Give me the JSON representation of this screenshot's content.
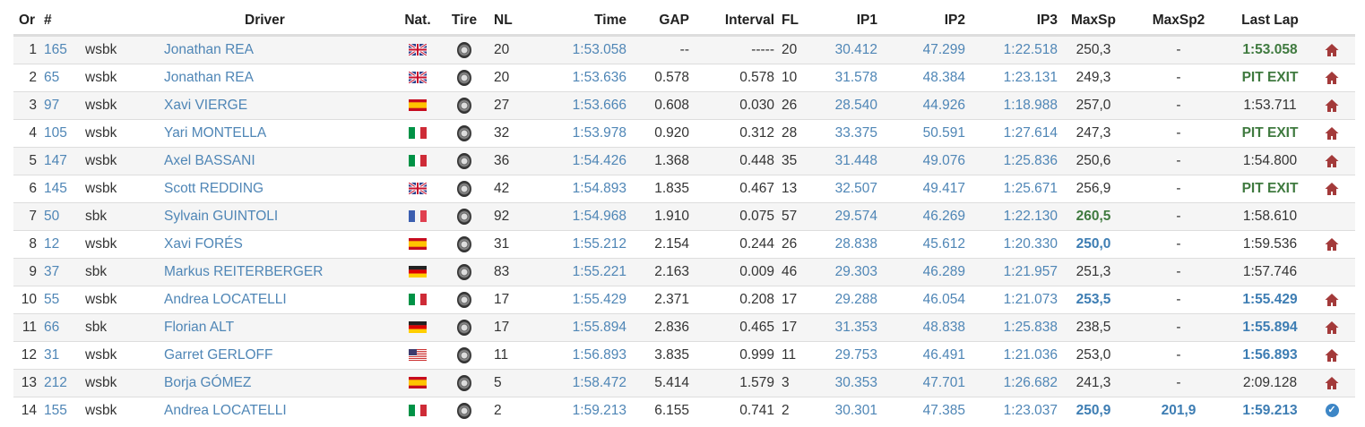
{
  "headers": {
    "or": "Or",
    "num": "#",
    "driver": "Driver",
    "nat": "Nat.",
    "tire": "Tire",
    "nl": "NL",
    "time": "Time",
    "gap": "GAP",
    "interval": "Interval",
    "fl": "FL",
    "ip1": "IP1",
    "ip2": "IP2",
    "ip3": "IP3",
    "maxsp": "MaxSp",
    "maxsp2": "MaxSp2",
    "lastlap": "Last Lap"
  },
  "colors": {
    "link": "#4f86b6",
    "green": "#3f7a3f",
    "blue": "#3d7db3",
    "home": "#a33a3a"
  },
  "rows": [
    {
      "or": "1",
      "num": "165",
      "cls": "wsbk",
      "driver": "Jonathan REA",
      "nat": "GB",
      "nl": "20",
      "time": "1:53.058",
      "gap": "--",
      "interval": "-----",
      "fl": "20",
      "ip1": "30.412",
      "ip2": "47.299",
      "ip3": "1:22.518",
      "maxsp": "250,3",
      "maxsp_style": "",
      "maxsp2": "-",
      "maxsp2_style": "",
      "lastlap": "1:53.058",
      "lastlap_style": "green",
      "icon": "home-icon"
    },
    {
      "or": "2",
      "num": "65",
      "cls": "wsbk",
      "driver": "Jonathan REA",
      "nat": "GB",
      "nl": "20",
      "time": "1:53.636",
      "gap": "0.578",
      "interval": "0.578",
      "fl": "10",
      "ip1": "31.578",
      "ip2": "48.384",
      "ip3": "1:23.131",
      "maxsp": "249,3",
      "maxsp_style": "",
      "maxsp2": "-",
      "maxsp2_style": "",
      "lastlap": "PIT EXIT",
      "lastlap_style": "pit",
      "icon": "home-icon"
    },
    {
      "or": "3",
      "num": "97",
      "cls": "wsbk",
      "driver": "Xavi VIERGE",
      "nat": "ES",
      "nl": "27",
      "time": "1:53.666",
      "gap": "0.608",
      "interval": "0.030",
      "fl": "26",
      "ip1": "28.540",
      "ip2": "44.926",
      "ip3": "1:18.988",
      "maxsp": "257,0",
      "maxsp_style": "",
      "maxsp2": "-",
      "maxsp2_style": "",
      "lastlap": "1:53.711",
      "lastlap_style": "",
      "icon": "home-icon"
    },
    {
      "or": "4",
      "num": "105",
      "cls": "wsbk",
      "driver": "Yari MONTELLA",
      "nat": "IT",
      "nl": "32",
      "time": "1:53.978",
      "gap": "0.920",
      "interval": "0.312",
      "fl": "28",
      "ip1": "33.375",
      "ip2": "50.591",
      "ip3": "1:27.614",
      "maxsp": "247,3",
      "maxsp_style": "",
      "maxsp2": "-",
      "maxsp2_style": "",
      "lastlap": "PIT EXIT",
      "lastlap_style": "pit",
      "icon": "home-icon"
    },
    {
      "or": "5",
      "num": "147",
      "cls": "wsbk",
      "driver": "Axel BASSANI",
      "nat": "IT",
      "nl": "36",
      "time": "1:54.426",
      "gap": "1.368",
      "interval": "0.448",
      "fl": "35",
      "ip1": "31.448",
      "ip2": "49.076",
      "ip3": "1:25.836",
      "maxsp": "250,6",
      "maxsp_style": "",
      "maxsp2": "-",
      "maxsp2_style": "",
      "lastlap": "1:54.800",
      "lastlap_style": "",
      "icon": "home-icon"
    },
    {
      "or": "6",
      "num": "145",
      "cls": "wsbk",
      "driver": "Scott REDDING",
      "nat": "GB",
      "nl": "42",
      "time": "1:54.893",
      "gap": "1.835",
      "interval": "0.467",
      "fl": "13",
      "ip1": "32.507",
      "ip2": "49.417",
      "ip3": "1:25.671",
      "maxsp": "256,9",
      "maxsp_style": "",
      "maxsp2": "-",
      "maxsp2_style": "",
      "lastlap": "PIT EXIT",
      "lastlap_style": "pit",
      "icon": "home-icon"
    },
    {
      "or": "7",
      "num": "50",
      "cls": "sbk",
      "driver": "Sylvain GUINTOLI",
      "nat": "FR",
      "nl": "92",
      "time": "1:54.968",
      "gap": "1.910",
      "interval": "0.075",
      "fl": "57",
      "ip1": "29.574",
      "ip2": "46.269",
      "ip3": "1:22.130",
      "maxsp": "260,5",
      "maxsp_style": "green",
      "maxsp2": "-",
      "maxsp2_style": "",
      "lastlap": "1:58.610",
      "lastlap_style": "",
      "icon": ""
    },
    {
      "or": "8",
      "num": "12",
      "cls": "wsbk",
      "driver": "Xavi FORÉS",
      "nat": "ES",
      "nl": "31",
      "time": "1:55.212",
      "gap": "2.154",
      "interval": "0.244",
      "fl": "26",
      "ip1": "28.838",
      "ip2": "45.612",
      "ip3": "1:20.330",
      "maxsp": "250,0",
      "maxsp_style": "blue",
      "maxsp2": "-",
      "maxsp2_style": "",
      "lastlap": "1:59.536",
      "lastlap_style": "",
      "icon": "home-icon"
    },
    {
      "or": "9",
      "num": "37",
      "cls": "sbk",
      "driver": "Markus REITERBERGER",
      "nat": "DE",
      "nl": "83",
      "time": "1:55.221",
      "gap": "2.163",
      "interval": "0.009",
      "fl": "46",
      "ip1": "29.303",
      "ip2": "46.289",
      "ip3": "1:21.957",
      "maxsp": "251,3",
      "maxsp_style": "",
      "maxsp2": "-",
      "maxsp2_style": "",
      "lastlap": "1:57.746",
      "lastlap_style": "",
      "icon": ""
    },
    {
      "or": "10",
      "num": "55",
      "cls": "wsbk",
      "driver": "Andrea LOCATELLI",
      "nat": "IT",
      "nl": "17",
      "time": "1:55.429",
      "gap": "2.371",
      "interval": "0.208",
      "fl": "17",
      "ip1": "29.288",
      "ip2": "46.054",
      "ip3": "1:21.073",
      "maxsp": "253,5",
      "maxsp_style": "blue",
      "maxsp2": "-",
      "maxsp2_style": "",
      "lastlap": "1:55.429",
      "lastlap_style": "blue",
      "icon": "home-icon"
    },
    {
      "or": "11",
      "num": "66",
      "cls": "sbk",
      "driver": "Florian ALT",
      "nat": "DE",
      "nl": "17",
      "time": "1:55.894",
      "gap": "2.836",
      "interval": "0.465",
      "fl": "17",
      "ip1": "31.353",
      "ip2": "48.838",
      "ip3": "1:25.838",
      "maxsp": "238,5",
      "maxsp_style": "",
      "maxsp2": "-",
      "maxsp2_style": "",
      "lastlap": "1:55.894",
      "lastlap_style": "blue",
      "icon": "home-icon"
    },
    {
      "or": "12",
      "num": "31",
      "cls": "wsbk",
      "driver": "Garret GERLOFF",
      "nat": "US",
      "nl": "11",
      "time": "1:56.893",
      "gap": "3.835",
      "interval": "0.999",
      "fl": "11",
      "ip1": "29.753",
      "ip2": "46.491",
      "ip3": "1:21.036",
      "maxsp": "253,0",
      "maxsp_style": "",
      "maxsp2": "-",
      "maxsp2_style": "",
      "lastlap": "1:56.893",
      "lastlap_style": "blue",
      "icon": "home-icon"
    },
    {
      "or": "13",
      "num": "212",
      "cls": "wsbk",
      "driver": "Borja GÓMEZ",
      "nat": "ES",
      "nl": "5",
      "time": "1:58.472",
      "gap": "5.414",
      "interval": "1.579",
      "fl": "3",
      "ip1": "30.353",
      "ip2": "47.701",
      "ip3": "1:26.682",
      "maxsp": "241,3",
      "maxsp_style": "",
      "maxsp2": "-",
      "maxsp2_style": "",
      "lastlap": "2:09.128",
      "lastlap_style": "",
      "icon": "home-icon"
    },
    {
      "or": "14",
      "num": "155",
      "cls": "wsbk",
      "driver": "Andrea LOCATELLI",
      "nat": "IT",
      "nl": "2",
      "time": "1:59.213",
      "gap": "6.155",
      "interval": "0.741",
      "fl": "2",
      "ip1": "30.301",
      "ip2": "47.385",
      "ip3": "1:23.037",
      "maxsp": "250,9",
      "maxsp_style": "blue",
      "maxsp2": "201,9",
      "maxsp2_style": "blue",
      "lastlap": "1:59.213",
      "lastlap_style": "blue",
      "icon": "check-circle-icon"
    }
  ]
}
